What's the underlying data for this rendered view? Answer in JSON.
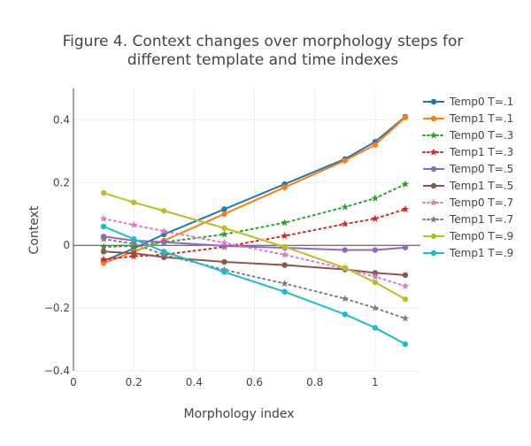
{
  "chart_data": {
    "type": "line",
    "title_lines": [
      "Figure 4. Context changes over morphology steps for",
      "different template and time indexes"
    ],
    "xlabel": "Morphology index",
    "ylabel": "Context",
    "xlim": [
      0,
      1.15
    ],
    "ylim": [
      -0.4,
      0.5
    ],
    "x_ticks": [
      0,
      0.2,
      0.4,
      0.6,
      0.8,
      1
    ],
    "x_tick_labels": [
      "0",
      "0.2",
      "0.4",
      "0.6",
      "0.8",
      "1"
    ],
    "y_ticks": [
      -0.4,
      -0.2,
      0,
      0.2,
      0.4
    ],
    "y_tick_labels": [
      "−0.4",
      "−0.2",
      "0",
      "0.2",
      "0.4"
    ],
    "grid": true,
    "legend_position": "right",
    "x": [
      0.1,
      0.2,
      0.3,
      0.5,
      0.7,
      0.9,
      1.0,
      1.1
    ],
    "series": [
      {
        "name": "Temp0 T=.1",
        "color": "#1f77b4",
        "dash": "solid",
        "marker": "circle",
        "values": [
          -0.05,
          -0.01,
          0.035,
          0.115,
          0.195,
          0.275,
          0.33,
          0.41
        ]
      },
      {
        "name": "Temp1 T=.1",
        "color": "#ff7f0e",
        "dash": "solid",
        "marker": "circle",
        "values": [
          -0.057,
          -0.02,
          0.015,
          0.1,
          0.185,
          0.27,
          0.32,
          0.408
        ]
      },
      {
        "name": "Temp0 T=.3",
        "color": "#2ca02c",
        "dash": "dot",
        "marker": "star",
        "values": [
          -0.005,
          -0.002,
          0.01,
          0.035,
          0.072,
          0.122,
          0.15,
          0.195
        ]
      },
      {
        "name": "Temp1 T=.3",
        "color": "#d62728",
        "dash": "dot",
        "marker": "star",
        "values": [
          -0.045,
          -0.035,
          -0.03,
          -0.005,
          0.03,
          0.068,
          0.085,
          0.115
        ]
      },
      {
        "name": "Temp0 T=.5",
        "color": "#9467bd",
        "dash": "solid",
        "marker": "circle",
        "values": [
          0.028,
          0.015,
          0.01,
          -0.002,
          -0.008,
          -0.015,
          -0.015,
          -0.007
        ]
      },
      {
        "name": "Temp1 T=.5",
        "color": "#8c564b",
        "dash": "solid",
        "marker": "circle",
        "values": [
          -0.02,
          -0.025,
          -0.038,
          -0.053,
          -0.063,
          -0.077,
          -0.088,
          -0.095
        ]
      },
      {
        "name": "Temp0 T=.7",
        "color": "#e377c2",
        "dash": "dot",
        "marker": "star",
        "values": [
          0.085,
          0.065,
          0.045,
          0.008,
          -0.03,
          -0.075,
          -0.1,
          -0.13
        ]
      },
      {
        "name": "Temp1 T=.7",
        "color": "#7f7f7f",
        "dash": "dot",
        "marker": "star",
        "values": [
          0.02,
          0.005,
          -0.03,
          -0.078,
          -0.122,
          -0.17,
          -0.2,
          -0.233
        ]
      },
      {
        "name": "Temp0 T=.9",
        "color": "#bcbd22",
        "dash": "solid",
        "marker": "circle",
        "values": [
          0.167,
          0.137,
          0.11,
          0.055,
          -0.005,
          -0.072,
          -0.118,
          -0.172
        ]
      },
      {
        "name": "Temp1 T=.9",
        "color": "#17becf",
        "dash": "solid",
        "marker": "circle",
        "values": [
          0.06,
          0.02,
          -0.02,
          -0.085,
          -0.148,
          -0.22,
          -0.263,
          -0.315
        ]
      }
    ]
  }
}
